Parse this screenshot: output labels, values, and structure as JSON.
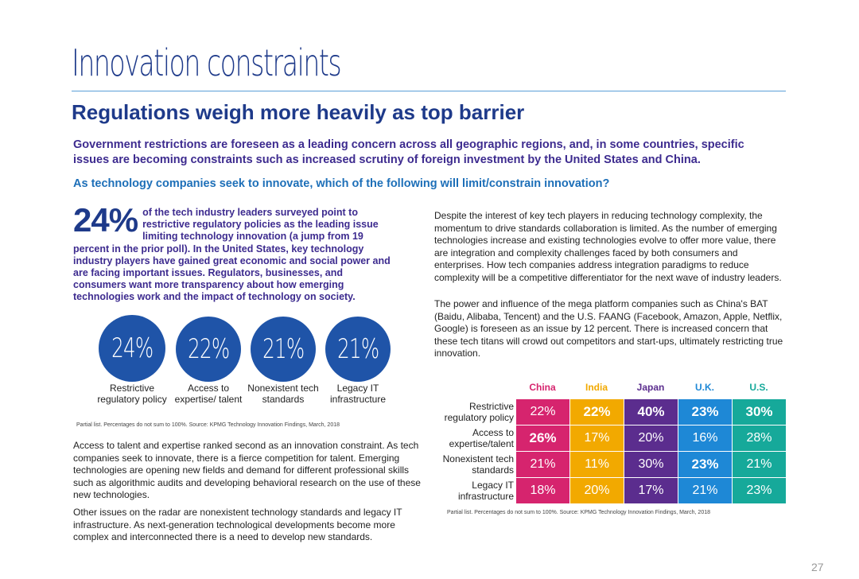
{
  "page": {
    "title": "Innovation constraints",
    "subtitle": "Regulations weigh more heavily as top barrier",
    "intro": "Government restrictions are foreseen as a leading concern across all geographic regions, and, in some countries, specific issues are becoming constraints such as increased scrutiny of foreign investment by the United States and China.",
    "question": "As technology companies seek to innovate, which of the following will limit/constrain innovation?",
    "page_number": "27"
  },
  "stat": {
    "big": "24%",
    "text": "of the tech industry leaders surveyed point to restrictive regulatory policies as the leading issue limiting technology innovation (a jump from 19 percent in the prior poll). In the United States, key technology industry players have gained great economic and social power and are facing important issues. Regulators, businesses, and consumers want more transparency about how emerging technologies work and the impact of technology on society."
  },
  "circles": [
    {
      "value": "24%",
      "label": "Restrictive regulatory policy"
    },
    {
      "value": "22%",
      "label": "Access to expertise/ talent"
    },
    {
      "value": "21%",
      "label": "Nonexistent tech standards"
    },
    {
      "value": "21%",
      "label": "Legacy IT infrastructure"
    }
  ],
  "footnote1": "Partial list. Percentages do not sum to 100%. Source: KPMG Technology Innovation Findings, March, 2018",
  "paragraphs": {
    "left1": "Access to talent and expertise ranked second as an innovation constraint. As tech companies seek to innovate, there is a fierce competition for talent. Emerging technologies are opening new fields and demand for different professional skills such as algorithmic audits and developing behavioral research on the use of these new technologies.",
    "left2": "Other issues on the radar are nonexistent technology standards and legacy IT infrastructure. As next-generation technological developments become more complex and interconnected there is a need to develop new standards.",
    "right1": "Despite the interest of key tech players in reducing technology complexity, the momentum to drive standards collaboration is limited. As the number of emerging technologies increase and existing technologies evolve to offer more value, there are integration and complexity challenges faced by both consumers and enterprises. How tech companies address integration paradigms to reduce complexity will be a competitive differentiator for the next wave of industry leaders.",
    "right2": "The power and influence of the mega platform companies such as China's BAT (Baidu, Alibaba, Tencent) and the U.S. FAANG (Facebook, Amazon, Apple, Netflix, Google) is foreseen as an issue by 12 percent. There is increased concern that these tech titans will crowd out competitors and start-ups, ultimately restricting true innovation."
  },
  "table": {
    "columns": [
      {
        "name": "China",
        "color": "#d6246e"
      },
      {
        "name": "India",
        "color": "#f2a900"
      },
      {
        "name": "Japan",
        "color": "#5b2d8e"
      },
      {
        "name": "U.K.",
        "color": "#1e88d6"
      },
      {
        "name": "U.S.",
        "color": "#16a99a"
      }
    ],
    "rows": [
      {
        "label": "Restrictive regulatory policy",
        "values": [
          "22%",
          "22%",
          "40%",
          "23%",
          "30%"
        ],
        "bold": [
          false,
          true,
          true,
          true,
          true
        ]
      },
      {
        "label": "Access to expertise/talent",
        "values": [
          "26%",
          "17%",
          "20%",
          "16%",
          "28%"
        ],
        "bold": [
          true,
          false,
          false,
          false,
          false
        ]
      },
      {
        "label": "Nonexistent tech standards",
        "values": [
          "21%",
          "11%",
          "30%",
          "23%",
          "21%"
        ],
        "bold": [
          false,
          false,
          false,
          true,
          false
        ]
      },
      {
        "label": "Legacy IT infrastructure",
        "values": [
          "18%",
          "20%",
          "17%",
          "21%",
          "23%"
        ],
        "bold": [
          false,
          false,
          false,
          false,
          false
        ]
      }
    ]
  },
  "footnote2": "Partial list. Percentages do not sum to 100%. Source: KPMG Technology Innovation Findings, March, 2018"
}
